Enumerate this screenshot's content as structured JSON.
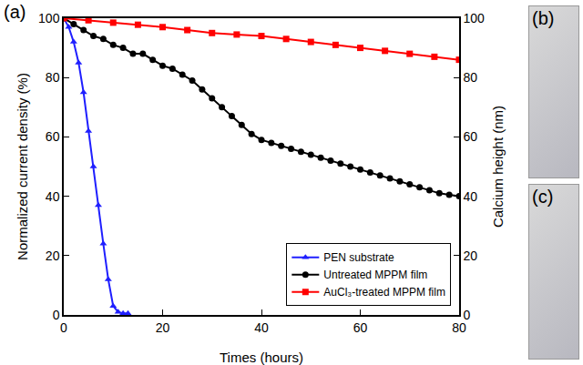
{
  "panel_labels": [
    "(a)",
    "(b)",
    "(c)"
  ],
  "chart_data": {
    "type": "line",
    "x_label": "Times (hours)",
    "y_label": "Normalized current density (%)",
    "y2_label": "Calcium height (nm)",
    "xlim": [
      0,
      80
    ],
    "xticks": [
      0,
      20,
      40,
      60,
      80
    ],
    "ylim": [
      0,
      100
    ],
    "yticks": [
      0,
      20,
      40,
      60,
      80,
      100
    ],
    "y2lim": [
      0,
      100
    ],
    "y2ticks": [
      0,
      20,
      40,
      60,
      80,
      100
    ],
    "grid": false,
    "legend": "bottom right",
    "series": [
      {
        "name": "PEN substrate",
        "color": "#1f1fff",
        "marker": "triangle-up",
        "line_style": "solid",
        "x": [
          0,
          1,
          2,
          3,
          4,
          5,
          6,
          7,
          8,
          9,
          10,
          11,
          12,
          13
        ],
        "values": [
          100,
          97,
          92,
          85,
          75,
          62,
          50,
          37,
          24,
          12,
          3,
          1,
          0.5,
          0.5
        ]
      },
      {
        "name": "Untreated MPPM film",
        "color": "#000000",
        "marker": "circle",
        "line_style": "solid",
        "x": [
          0,
          2,
          4,
          6,
          8,
          10,
          12,
          14,
          16,
          18,
          20,
          22,
          24,
          26,
          28,
          30,
          32,
          34,
          36,
          38,
          40,
          42,
          44,
          46,
          48,
          50,
          52,
          54,
          56,
          58,
          60,
          62,
          64,
          66,
          68,
          70,
          72,
          74,
          76,
          78,
          80
        ],
        "values": [
          100,
          98,
          96,
          94,
          93,
          91,
          90,
          88,
          88,
          86,
          84,
          83,
          81,
          79,
          76,
          73,
          70,
          67,
          64,
          61,
          59,
          58,
          57,
          56,
          55,
          54,
          53,
          52,
          51,
          50,
          49,
          48,
          47,
          46,
          45,
          44,
          43,
          42,
          41,
          40.5,
          40
        ]
      },
      {
        "name": "AuCl₃-treated MPPM film",
        "color": "#ff0000",
        "marker": "square",
        "line_style": "solid",
        "x": [
          0,
          5,
          10,
          15,
          20,
          25,
          30,
          35,
          40,
          45,
          50,
          55,
          60,
          65,
          70,
          75,
          80
        ],
        "values": [
          100,
          99.3,
          98.5,
          97.8,
          97,
          96,
          95,
          94.5,
          94,
          93,
          92,
          91,
          90,
          89,
          88,
          87,
          86
        ]
      }
    ]
  }
}
